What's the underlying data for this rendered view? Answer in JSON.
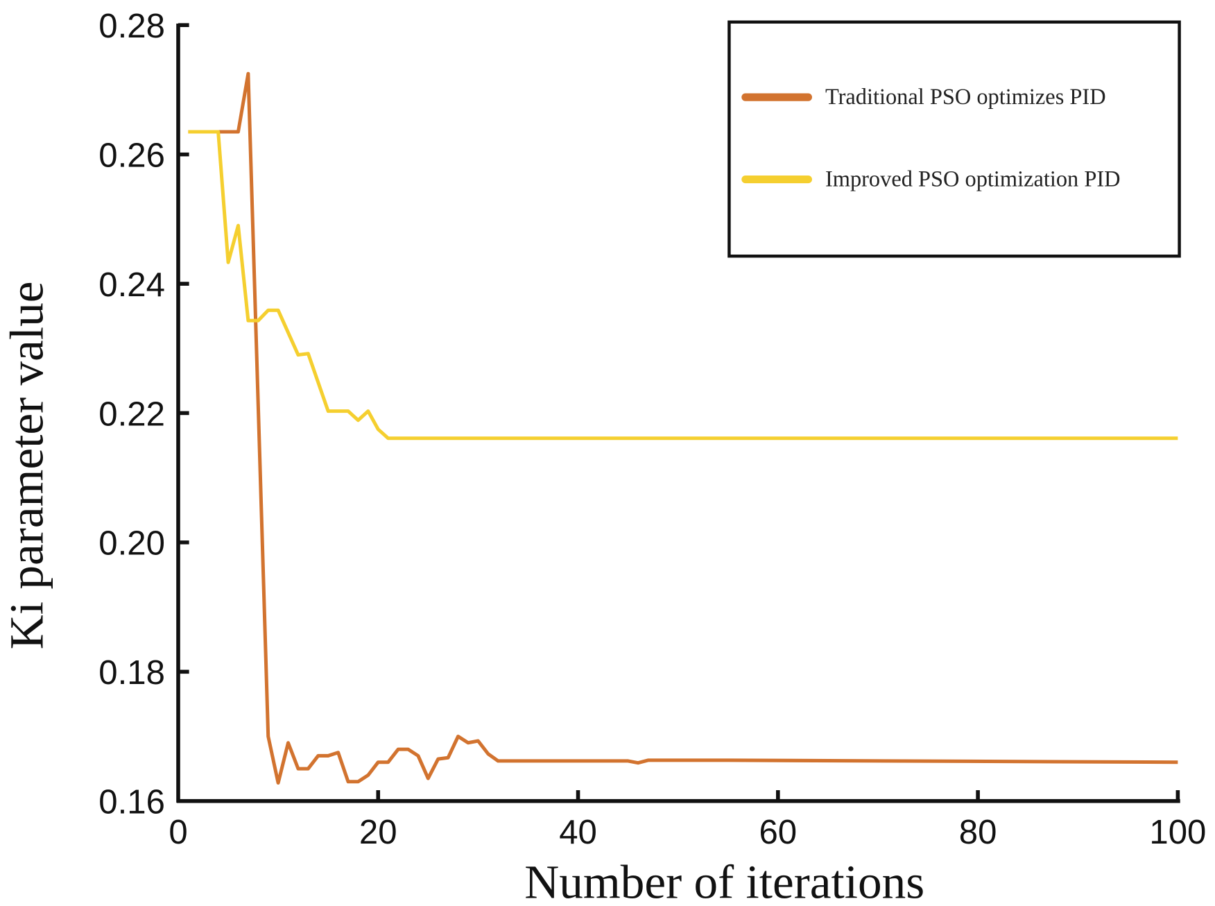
{
  "chart_data": {
    "type": "line",
    "title": "",
    "xlabel": "Number of iterations",
    "ylabel": "Ki parameter value",
    "xlim": [
      0,
      100
    ],
    "ylim": [
      0.16,
      0.28
    ],
    "xticks": [
      "0",
      "20",
      "40",
      "60",
      "80",
      "100"
    ],
    "yticks": [
      "0.16",
      "0.18",
      "0.20",
      "0.22",
      "0.24",
      "0.26",
      "0.28"
    ],
    "grid": false,
    "legend_position": "top-right",
    "series": [
      {
        "name": "Traditional PSO optimizes PID",
        "color": "#d2732f",
        "x": [
          1,
          6,
          7,
          9,
          10,
          11,
          12,
          13,
          14,
          15,
          16,
          17,
          18,
          19,
          20,
          21,
          22,
          23,
          24,
          25,
          26,
          27,
          28,
          29,
          30,
          31,
          32,
          45,
          46,
          47,
          55,
          100
        ],
        "y": [
          0.2635,
          0.2635,
          0.2725,
          0.17,
          0.1628,
          0.169,
          0.165,
          0.165,
          0.167,
          0.167,
          0.1675,
          0.163,
          0.163,
          0.164,
          0.166,
          0.166,
          0.168,
          0.168,
          0.167,
          0.1635,
          0.1665,
          0.1667,
          0.17,
          0.169,
          0.1693,
          0.1673,
          0.1662,
          0.1662,
          0.1659,
          0.1663,
          0.1663,
          0.166
        ]
      },
      {
        "name": "Improved PSO optimization PID",
        "color": "#f5cf2f",
        "x": [
          1,
          4,
          5,
          6,
          7,
          8,
          9,
          10,
          12,
          13,
          15,
          16,
          17,
          18,
          19,
          20,
          21,
          100
        ],
        "y": [
          0.2635,
          0.2635,
          0.2433,
          0.249,
          0.2343,
          0.2343,
          0.2359,
          0.2359,
          0.229,
          0.2292,
          0.2203,
          0.2203,
          0.2203,
          0.2189,
          0.2203,
          0.2175,
          0.2161,
          0.2161
        ]
      }
    ]
  }
}
